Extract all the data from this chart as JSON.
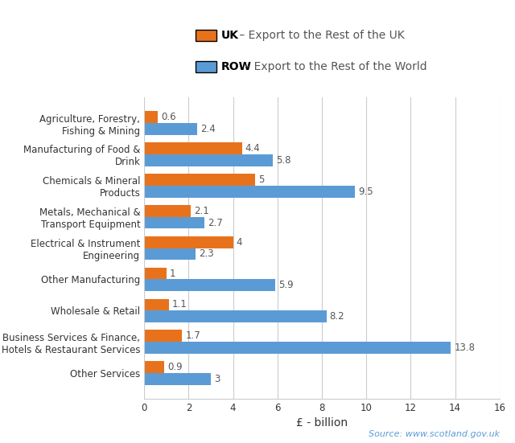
{
  "categories": [
    "Agriculture, Forestry,\nFishing & Mining",
    "Manufacturing of Food &\nDrink",
    "Chemicals & Mineral\nProducts",
    "Metals, Mechanical &\nTransport Equipment",
    "Electrical & Instrument\nEngineering",
    "Other Manufacturing",
    "Wholesale & Retail",
    "Business Services & Finance,\nHotels & Restaurant Services",
    "Other Services"
  ],
  "uk_values": [
    0.6,
    4.4,
    5.0,
    2.1,
    4.0,
    1.0,
    1.1,
    1.7,
    0.9
  ],
  "row_values": [
    2.4,
    5.8,
    9.5,
    2.7,
    2.3,
    5.9,
    8.2,
    13.8,
    3.0
  ],
  "uk_label_bold": "UK",
  "uk_label_rest": " – Export to the Rest of the UK",
  "row_label_bold": "ROW",
  "row_label_rest": " – Export to the Rest of the World",
  "uk_color": "#E8721C",
  "row_color": "#5B9BD5",
  "xlabel": "£ - billion",
  "xlim": [
    0,
    16
  ],
  "xticks": [
    0,
    2,
    4,
    6,
    8,
    10,
    12,
    14,
    16
  ],
  "source_text": "Source: www.scotland.gov.uk",
  "background_color": "#FFFFFF",
  "bar_height": 0.38,
  "legend_fontsize": 10,
  "label_fontsize": 8.5,
  "tick_fontsize": 8.5,
  "axis_label_fontsize": 10,
  "source_fontsize": 8,
  "uk_value_labels": [
    "0.6",
    "4.4",
    "5",
    "2.1",
    "4",
    "1",
    "1.1",
    "1.7",
    "0.9"
  ],
  "row_value_labels": [
    "2.4",
    "5.8",
    "9.5",
    "2.7",
    "2.3",
    "5.9",
    "8.2",
    "13.8",
    "3"
  ]
}
